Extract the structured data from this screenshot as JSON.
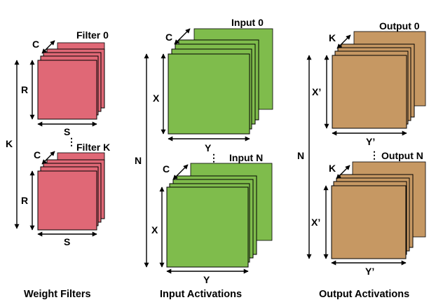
{
  "colors": {
    "weight": "#e06876",
    "input": "#7fbc4c",
    "output": "#c69863",
    "stroke": "#000000"
  },
  "weight": {
    "caption": "Weight Filters",
    "top_title": "Filter 0",
    "bottom_title": "Filter K",
    "channel_label": "C",
    "height_label": "R",
    "width_label": "S",
    "count_label": "K",
    "ellipsis": "⋮"
  },
  "input": {
    "caption": "Input Activations",
    "top_title": "Input 0",
    "bottom_title": "Input N",
    "channel_label": "C",
    "height_label": "X",
    "width_label": "Y",
    "count_label": "N",
    "ellipsis": "⋮"
  },
  "output": {
    "caption": "Output Activations",
    "top_title": "Output 0",
    "bottom_title": "Output N",
    "channel_label": "K",
    "height_label": "X’",
    "width_label": "Y’",
    "count_label": "N",
    "ellipsis": "⋮"
  }
}
